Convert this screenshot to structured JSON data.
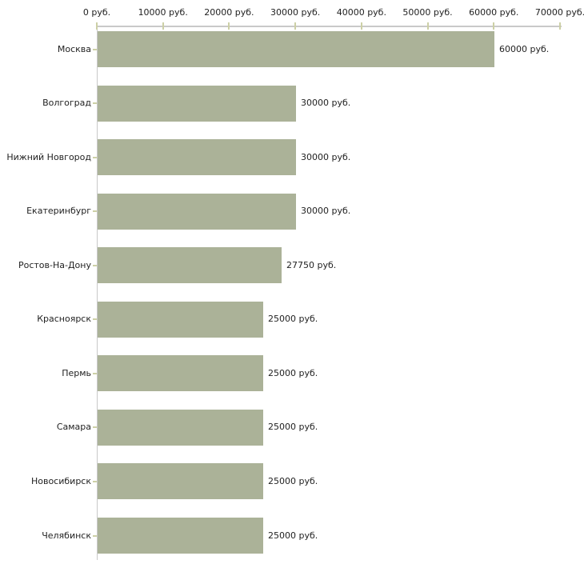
{
  "chart_data": {
    "type": "bar",
    "orientation": "horizontal",
    "title": "",
    "categories": [
      "Москва",
      "Волгоград",
      "Нижний Новгород",
      "Екатеринбург",
      "Ростов-На-Дону",
      "Красноярск",
      "Пермь",
      "Самара",
      "Новосибирск",
      "Челябинск"
    ],
    "values": [
      60000,
      30000,
      30000,
      30000,
      27750,
      25000,
      25000,
      25000,
      25000,
      25000
    ],
    "value_labels": [
      "60000 руб.",
      "30000 руб.",
      "30000 руб.",
      "30000 руб.",
      "27750 руб.",
      "25000 руб.",
      "25000 руб.",
      "25000 руб.",
      "25000 руб.",
      "25000 руб."
    ],
    "x_axis": {
      "position": "top",
      "min": 0,
      "max": 70000,
      "ticks": [
        0,
        10000,
        20000,
        30000,
        40000,
        50000,
        60000,
        70000
      ],
      "tick_labels": [
        "0 руб.",
        "10000 руб.",
        "20000 руб.",
        "30000 руб.",
        "40000 руб.",
        "50000 руб.",
        "60000 руб.",
        "70000 руб."
      ]
    },
    "grid": false,
    "legend": null,
    "colors": {
      "bar_fill": "#abb298",
      "axis_line": "#c9c9c9",
      "tick_mark": "#cdd0a6",
      "text": "#222222",
      "background": "#ffffff"
    }
  }
}
